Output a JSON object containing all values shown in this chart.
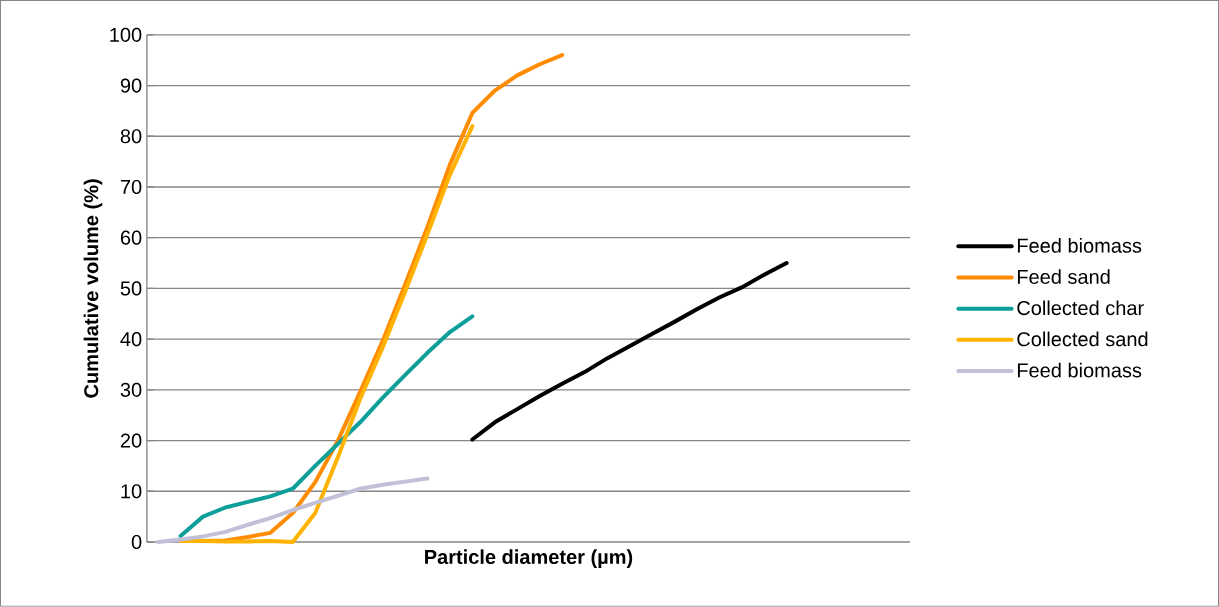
{
  "chart_data": {
    "type": "line",
    "xlabel": "Particle diameter (µm)",
    "ylabel": "Cumulative volume (%)",
    "categories": [
      null,
      null,
      null,
      null,
      null,
      null,
      null,
      null,
      null,
      null,
      null,
      null,
      null,
      null,
      null,
      null,
      null,
      null,
      null,
      null,
      null,
      null,
      null,
      null,
      null,
      null,
      null,
      null,
      null,
      null,
      null,
      null,
      null,
      null
    ],
    "series": [
      {
        "name": "Feed biomass",
        "color": "#000000",
        "values": [
          null,
          null,
          null,
          null,
          null,
          null,
          null,
          null,
          null,
          null,
          null,
          null,
          null,
          null,
          20.2,
          23.6,
          26.2,
          28.8,
          31.2,
          33.5,
          36.2,
          38.6,
          41.0,
          43.4,
          45.9,
          48.2,
          50.2,
          52.7,
          55,
          null,
          null,
          null,
          null,
          null
        ]
      },
      {
        "name": "Feed sand",
        "color": "#ff8c00",
        "values": [
          null,
          0.3,
          0.2,
          0.3,
          1,
          1.8,
          5.7,
          11.8,
          19.9,
          29.6,
          39.6,
          50.7,
          62.1,
          74.4,
          84.6,
          89,
          92,
          94.2,
          96,
          null,
          null,
          null,
          null,
          null,
          null,
          null,
          null,
          null,
          null,
          null,
          null,
          null,
          null,
          null
        ]
      },
      {
        "name": "Collected char",
        "color": "#0e9f9a",
        "values": [
          null,
          1.2,
          5,
          6.8,
          7.9,
          9,
          10.5,
          15,
          19.3,
          23.6,
          28.4,
          32.9,
          37.3,
          41.4,
          44.5,
          null,
          null,
          null,
          null,
          null,
          null,
          null,
          null,
          null,
          null,
          null,
          null,
          null,
          null,
          null,
          null,
          null,
          null,
          null
        ]
      },
      {
        "name": "Collected sand",
        "color": "#ffb300",
        "values": [
          null,
          0.2,
          0.2,
          0.1,
          0.1,
          0.2,
          0,
          5.7,
          16.6,
          28.2,
          38.3,
          49.3,
          60.7,
          72.4,
          82,
          null,
          null,
          null,
          null,
          null,
          null,
          null,
          null,
          null,
          null,
          null,
          null,
          null,
          null,
          null,
          null,
          null,
          null,
          null
        ]
      },
      {
        "name": "Feed biomass",
        "color": "#c0c0d8",
        "values": [
          0,
          0.5,
          1.1,
          2.0,
          3.4,
          4.7,
          6.3,
          7.7,
          9.1,
          10.5,
          11.3,
          11.9,
          12.5,
          null,
          null,
          null,
          null,
          null,
          null,
          null,
          null,
          null,
          null,
          null,
          null,
          null,
          null,
          null,
          null,
          null,
          null,
          null,
          null,
          null
        ]
      }
    ],
    "ylim": [
      0,
      100
    ],
    "yticks": [
      0,
      10,
      20,
      30,
      40,
      50,
      60,
      70,
      80,
      90,
      100
    ],
    "grid": "y",
    "legend": "right",
    "tick_labels": "y",
    "marker": "none",
    "line_style": "solid"
  }
}
